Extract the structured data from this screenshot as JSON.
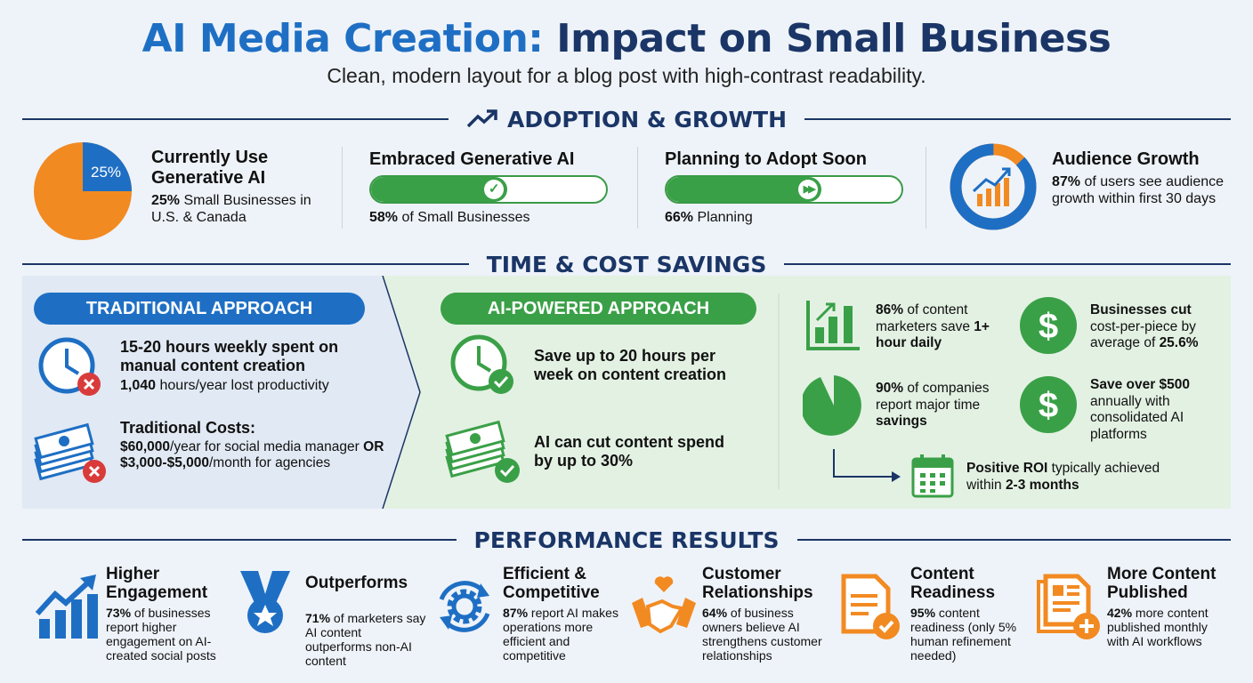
{
  "header": {
    "title_part1": "AI Media Creation:",
    "title_part2": "Impact on Small Business",
    "subtitle": "Clean, modern layout for a blog post with high-contrast readability."
  },
  "colors": {
    "blue": "#1e6fc4",
    "navy": "#1a3566",
    "green": "#3aa047",
    "orange": "#f28a22",
    "red": "#d93b3b",
    "left_panel": "#e1e9f4",
    "right_panel": "#e3f1e3"
  },
  "adoption": {
    "title": "ADOPTION & GROWTH",
    "icon": "trending-up-icon",
    "current": {
      "pie_label": "25%",
      "pie_value": 25,
      "heading": "Currently Use Generative AI",
      "desc": [
        {
          "text": "25%",
          "bold": true
        },
        {
          "text": " Small Businesses in U.S. & Canada",
          "bold": false
        }
      ]
    },
    "embraced": {
      "heading": "Embraced Generative AI",
      "progress": 58,
      "icon": "check-icon",
      "desc": [
        {
          "text": "58%",
          "bold": true
        },
        {
          "text": " of Small Businesses",
          "bold": false
        }
      ]
    },
    "planning": {
      "heading": "Planning to Adopt Soon",
      "progress": 66,
      "icon": "fast-forward-icon",
      "desc": [
        {
          "text": "66%",
          "bold": true
        },
        {
          "text": " Planning",
          "bold": false
        }
      ]
    },
    "audience": {
      "heading": "Audience Growth",
      "ring_value": 87,
      "icon": "growth-chart-icon",
      "desc": [
        {
          "text": "87%",
          "bold": true
        },
        {
          "text": " of users see audience growth within first 30 days",
          "bold": false
        }
      ]
    }
  },
  "savings": {
    "title": "TIME & COST SAVINGS",
    "traditional": {
      "label": "TRADITIONAL APPROACH",
      "item1": {
        "icon": "clock-x-icon",
        "heading": "15-20 hours weekly spent on manual content creation",
        "desc": [
          {
            "text": "1,040",
            "bold": true
          },
          {
            "text": " hours/year lost productivity",
            "bold": false
          }
        ]
      },
      "item2": {
        "icon": "money-x-icon",
        "heading": "Traditional Costs:",
        "desc": [
          {
            "text": "$60,000",
            "bold": true
          },
          {
            "text": "/year for social media manager ",
            "bold": false
          },
          {
            "text": "OR",
            "bold": true
          },
          {
            "text": " ",
            "bold": false
          },
          {
            "text": "$3,000-$5,000",
            "bold": true
          },
          {
            "text": "/month for agencies",
            "bold": false
          }
        ]
      }
    },
    "ai": {
      "label": "AI-POWERED APPROACH",
      "item1": {
        "icon": "clock-check-icon",
        "heading": "Save up to 20 hours per week on content creation"
      },
      "item2": {
        "icon": "money-check-icon",
        "heading": "AI can cut content spend by up to 30%"
      }
    },
    "stats": [
      {
        "icon": "bar-chart-icon",
        "desc": [
          {
            "text": "86%",
            "bold": true
          },
          {
            "text": " of content marketers save ",
            "bold": false
          },
          {
            "text": "1+ hour daily",
            "bold": true
          }
        ]
      },
      {
        "icon": "dollar-icon",
        "desc": [
          {
            "text": "Businesses cut",
            "bold": true
          },
          {
            "text": " cost-per-piece by average of ",
            "bold": false
          },
          {
            "text": "25.6%",
            "bold": true
          }
        ]
      },
      {
        "icon": "pie-icon",
        "desc": [
          {
            "text": "90%",
            "bold": true
          },
          {
            "text": " of companies report major time ",
            "bold": false
          },
          {
            "text": "savings",
            "bold": true
          }
        ]
      },
      {
        "icon": "dollar-icon",
        "desc": [
          {
            "text": "Save over $500",
            "bold": true
          },
          {
            "text": " annually with consolidated AI platforms",
            "bold": false
          }
        ]
      },
      {
        "icon": "calendar-icon",
        "desc": [
          {
            "text": "Positive ROI",
            "bold": true
          },
          {
            "text": " typically achieved within ",
            "bold": false
          },
          {
            "text": "2-3 months",
            "bold": true
          }
        ]
      }
    ]
  },
  "performance": {
    "title": "PERFORMANCE RESULTS",
    "items": [
      {
        "icon": "growth-chart-icon",
        "heading": "Higher Engagement",
        "desc": [
          {
            "text": "73%",
            "bold": true
          },
          {
            "text": " of businesses report higher engagement on AI-created social posts",
            "bold": false
          }
        ]
      },
      {
        "icon": "medal-icon",
        "heading": "Outperforms",
        "desc": [
          {
            "text": "71%",
            "bold": true
          },
          {
            "text": " of marketers say AI content outperforms non-AI content",
            "bold": false
          }
        ]
      },
      {
        "icon": "gear-cycle-icon",
        "heading": "Efficient & Competitive",
        "desc": [
          {
            "text": "87%",
            "bold": true
          },
          {
            "text": " report AI makes operations more efficient and competitive",
            "bold": false
          }
        ]
      },
      {
        "icon": "handshake-heart-icon",
        "heading": "Customer Relationships",
        "desc": [
          {
            "text": "64%",
            "bold": true
          },
          {
            "text": " of business owners believe AI strengthens customer relationships",
            "bold": false
          }
        ]
      },
      {
        "icon": "document-check-icon",
        "heading": "Content Readiness",
        "desc": [
          {
            "text": "95%",
            "bold": true
          },
          {
            "text": " content readiness (only 5% human refinement needed)",
            "bold": false
          }
        ]
      },
      {
        "icon": "document-plus-icon",
        "heading": "More Content Published",
        "desc": [
          {
            "text": "42%",
            "bold": true
          },
          {
            "text": " more content published monthly with AI workflows",
            "bold": false
          }
        ]
      }
    ]
  }
}
